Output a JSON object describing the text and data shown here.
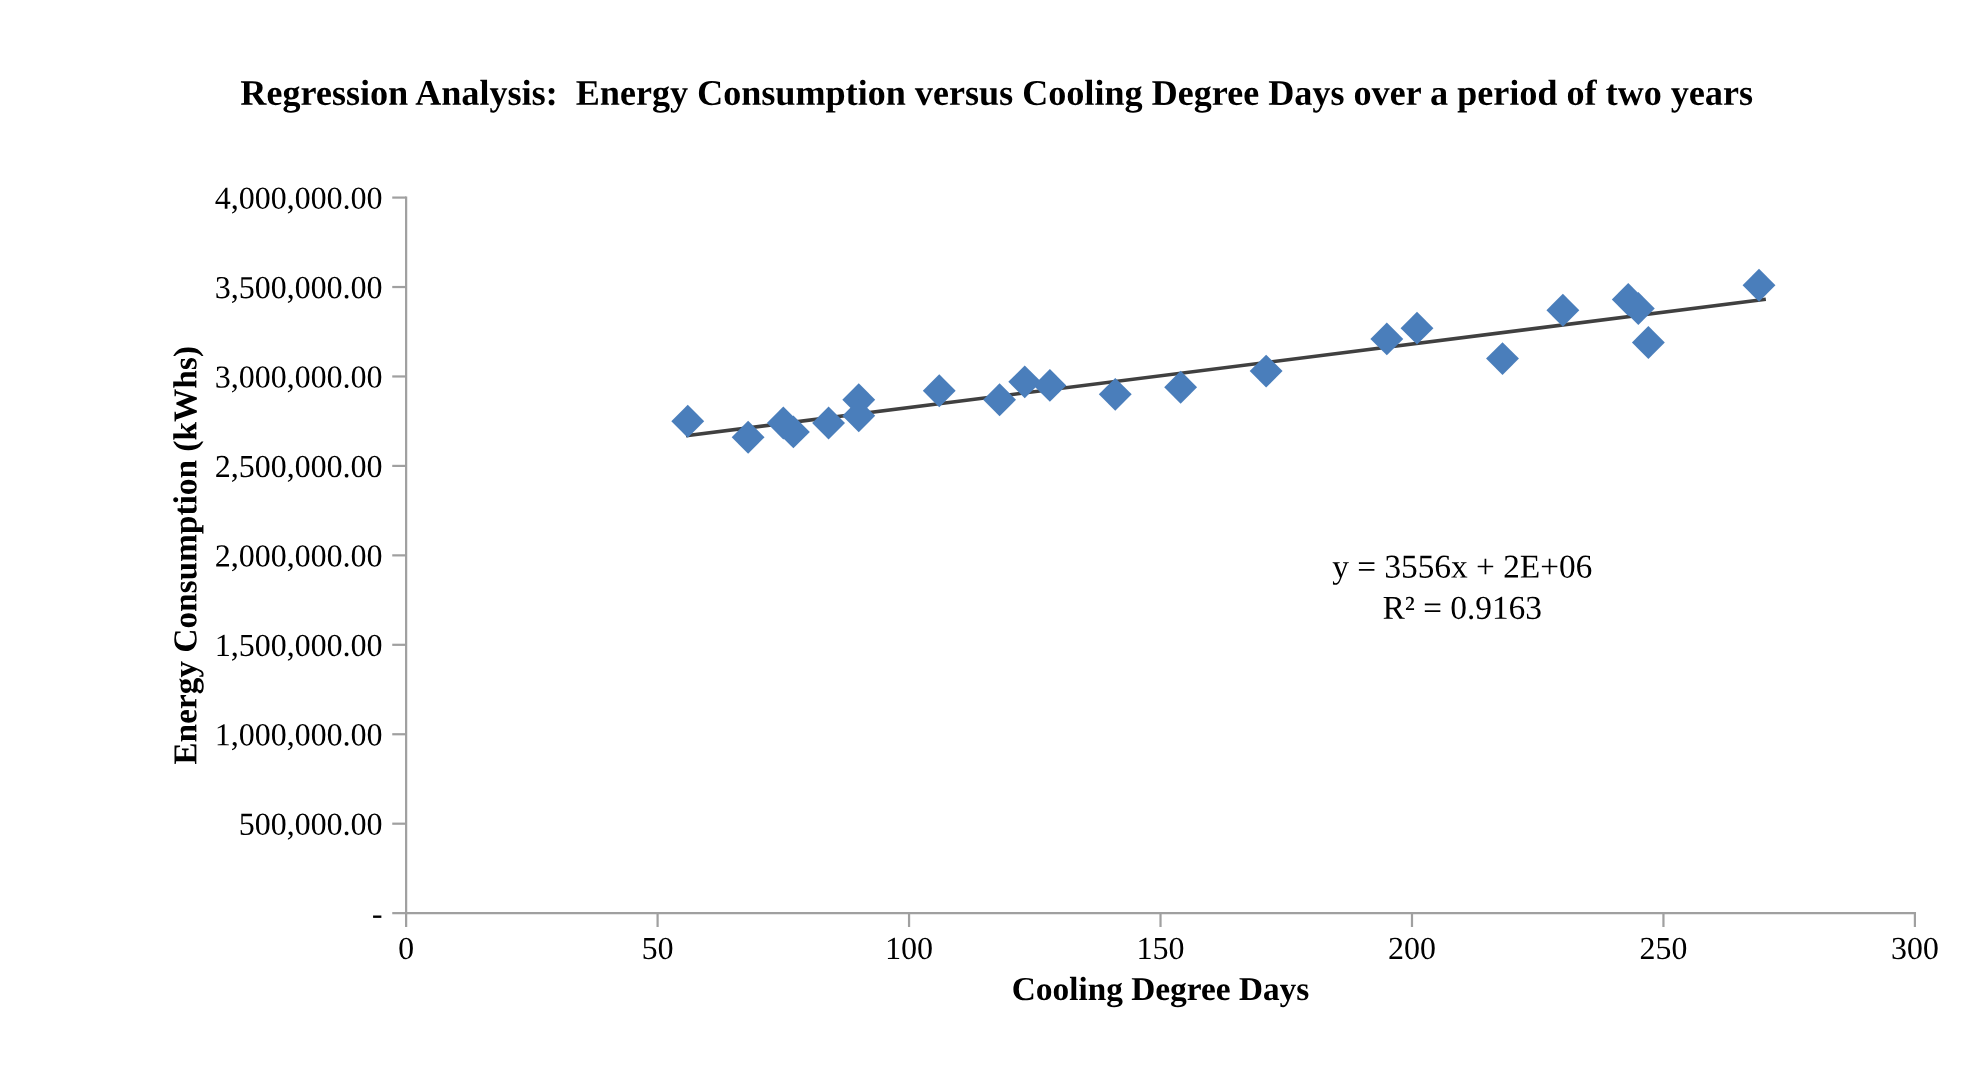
{
  "chart_data": {
    "type": "scatter",
    "title": "Regression Analysis:  Energy Consumption versus Cooling Degree Days over a period of two years",
    "xlabel": "Cooling Degree Days",
    "ylabel": "Energy Consumption (kWhs)",
    "grid": false,
    "legend": false,
    "series": [
      {
        "marker": "diamond",
        "color": "#4a7ebb",
        "x": [
          56,
          68,
          75,
          77,
          84,
          90,
          90,
          106,
          118,
          123,
          128,
          141,
          154,
          171,
          195,
          201,
          218,
          230,
          243,
          245,
          247,
          269
        ],
        "values": [
          2750000,
          2660000,
          2740000,
          2690000,
          2740000,
          2870000,
          2780000,
          2920000,
          2870000,
          2970000,
          2950000,
          2900000,
          2940000,
          3030000,
          3210000,
          3270000,
          3100000,
          3370000,
          3430000,
          3380000,
          3190000,
          3510000
        ]
      },
      {
        "type": "line",
        "color": "#404040",
        "x": [
          56,
          270
        ],
        "values": [
          2670000,
          3430000
        ]
      }
    ],
    "xlim": [
      0,
      300
    ],
    "xticks": [
      0,
      50,
      100,
      150,
      200,
      250,
      300
    ],
    "ylim": [
      0,
      4000000
    ],
    "yticks": [
      {
        "value": 0,
        "label": "-"
      },
      {
        "value": 500000,
        "label": "500,000.00"
      },
      {
        "value": 1000000,
        "label": "1,000,000.00"
      },
      {
        "value": 1500000,
        "label": "1,500,000.00"
      },
      {
        "value": 2000000,
        "label": "2,000,000.00"
      },
      {
        "value": 2500000,
        "label": "2,500,000.00"
      },
      {
        "value": 3000000,
        "label": "3,000,000.00"
      },
      {
        "value": 3500000,
        "label": "3,500,000.00"
      },
      {
        "value": 4000000,
        "label": "4,000,000.00"
      }
    ],
    "annotations": [
      "y = 3556x + 2E+06",
      "R² = 0.9163"
    ]
  }
}
